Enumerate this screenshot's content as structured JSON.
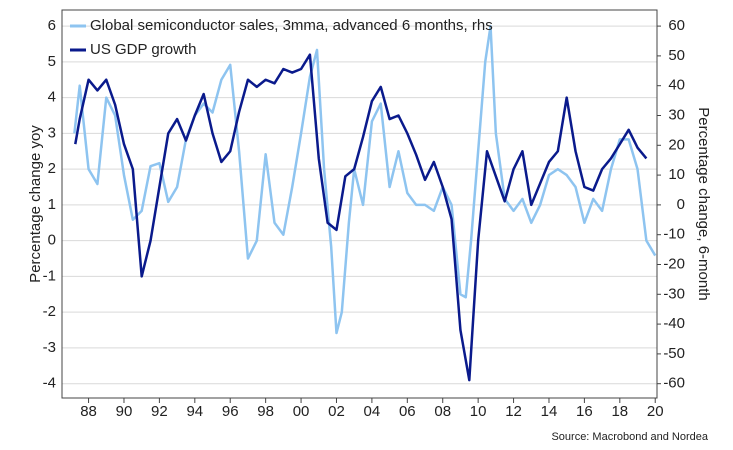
{
  "chart_data": {
    "type": "line",
    "y_label": "Percentage change yoy",
    "y2_label": "Percentage change, 6-month",
    "source": "Source: Macrobond and Nordea",
    "xlim": [
      1986.5,
      2020.1
    ],
    "xticks": [
      {
        "value": 1988,
        "label": "88"
      },
      {
        "value": 1990,
        "label": "90"
      },
      {
        "value": 1992,
        "label": "92"
      },
      {
        "value": 1994,
        "label": "94"
      },
      {
        "value": 1996,
        "label": "96"
      },
      {
        "value": 1998,
        "label": "98"
      },
      {
        "value": 2000,
        "label": "00"
      },
      {
        "value": 2002,
        "label": "02"
      },
      {
        "value": 2004,
        "label": "04"
      },
      {
        "value": 2006,
        "label": "06"
      },
      {
        "value": 2008,
        "label": "08"
      },
      {
        "value": 2010,
        "label": "10"
      },
      {
        "value": 2012,
        "label": "12"
      },
      {
        "value": 2014,
        "label": "14"
      },
      {
        "value": 2016,
        "label": "16"
      },
      {
        "value": 2018,
        "label": "18"
      },
      {
        "value": 2020,
        "label": "20"
      }
    ],
    "ylim": [
      -4.4,
      6.45
    ],
    "yticks": [
      -4,
      -3,
      -2,
      -1,
      0,
      1,
      2,
      3,
      4,
      5,
      6
    ],
    "y2lim": [
      -64.8,
      65.4
    ],
    "y2ticks": [
      -60,
      -50,
      -40,
      -30,
      -20,
      -10,
      0,
      10,
      20,
      30,
      40,
      50,
      60
    ],
    "grid": true,
    "series": [
      {
        "name": "Global semiconductor sales, 3mma, advanced 6 months, rhs",
        "color": "#8ec4f0",
        "axis": "y2",
        "x": [
          1987.2,
          1987.5,
          1988,
          1988.5,
          1989,
          1989.5,
          1990,
          1990.5,
          1991,
          1991.5,
          1992,
          1992.5,
          1993,
          1993.5,
          1994,
          1994.5,
          1995,
          1995.5,
          1996,
          1996.5,
          1997,
          1997.5,
          1998,
          1998.5,
          1999,
          1999.5,
          2000,
          2000.5,
          2000.9,
          2001.3,
          2001.7,
          2002,
          2002.3,
          2002.7,
          2003,
          2003.5,
          2004,
          2004.5,
          2005,
          2005.5,
          2006,
          2006.5,
          2007,
          2007.5,
          2008,
          2008.5,
          2009,
          2009.3,
          2009.6,
          2010,
          2010.4,
          2010.7,
          2011,
          2011.5,
          2012,
          2012.5,
          2013,
          2013.5,
          2014,
          2014.5,
          2015,
          2015.5,
          2016,
          2016.5,
          2017,
          2017.5,
          2018,
          2018.5,
          2019,
          2019.5,
          2020
        ],
        "values": [
          24,
          40,
          12,
          7,
          36,
          30,
          10,
          -5,
          -2,
          13,
          14,
          1,
          6,
          22,
          30,
          34,
          31,
          42,
          47,
          18,
          -18,
          -12,
          17,
          -6,
          -10,
          6,
          24,
          43,
          52,
          12,
          -14,
          -43,
          -36,
          -6,
          12,
          0,
          28,
          34,
          6,
          18,
          4,
          0,
          0,
          -2,
          6,
          0,
          -30,
          -31,
          -12,
          18,
          48,
          60,
          24,
          2,
          -2,
          2,
          -6,
          0,
          10,
          12,
          10,
          6,
          -6,
          2,
          -2,
          12,
          22,
          22,
          12,
          -12,
          -17
        ]
      },
      {
        "name": "US GDP growth",
        "color": "#0a1a8c",
        "axis": "y",
        "x": [
          1987.25,
          1987.5,
          1988,
          1988.5,
          1989,
          1989.5,
          1990,
          1990.5,
          1991,
          1991.5,
          1992,
          1992.5,
          1993,
          1993.5,
          1994,
          1994.5,
          1995,
          1995.5,
          1996,
          1996.5,
          1997,
          1997.5,
          1998,
          1998.5,
          1999,
          1999.5,
          2000,
          2000.5,
          2001,
          2001.5,
          2002,
          2002.5,
          2003,
          2003.5,
          2004,
          2004.5,
          2005,
          2005.5,
          2006,
          2006.5,
          2007,
          2007.5,
          2008,
          2008.5,
          2009,
          2009.5,
          2010,
          2010.5,
          2011,
          2011.5,
          2012,
          2012.5,
          2013,
          2013.5,
          2014,
          2014.5,
          2015,
          2015.5,
          2016,
          2016.5,
          2017,
          2017.5,
          2018,
          2018.5,
          2019,
          2019.5
        ],
        "values": [
          2.7,
          3.4,
          4.5,
          4.2,
          4.5,
          3.8,
          2.7,
          2.0,
          -1.0,
          0.0,
          1.5,
          3.0,
          3.4,
          2.8,
          3.5,
          4.1,
          3.0,
          2.2,
          2.5,
          3.6,
          4.5,
          4.3,
          4.5,
          4.4,
          4.8,
          4.7,
          4.8,
          5.2,
          2.3,
          0.5,
          0.3,
          1.8,
          2.0,
          2.9,
          3.9,
          4.3,
          3.4,
          3.5,
          3.0,
          2.4,
          1.7,
          2.2,
          1.5,
          0.6,
          -2.5,
          -3.9,
          0.0,
          2.5,
          1.8,
          1.1,
          2.0,
          2.5,
          1.0,
          1.6,
          2.2,
          2.5,
          4.0,
          2.5,
          1.5,
          1.4,
          2.0,
          2.3,
          2.7,
          3.1,
          2.6,
          2.3
        ]
      }
    ]
  }
}
